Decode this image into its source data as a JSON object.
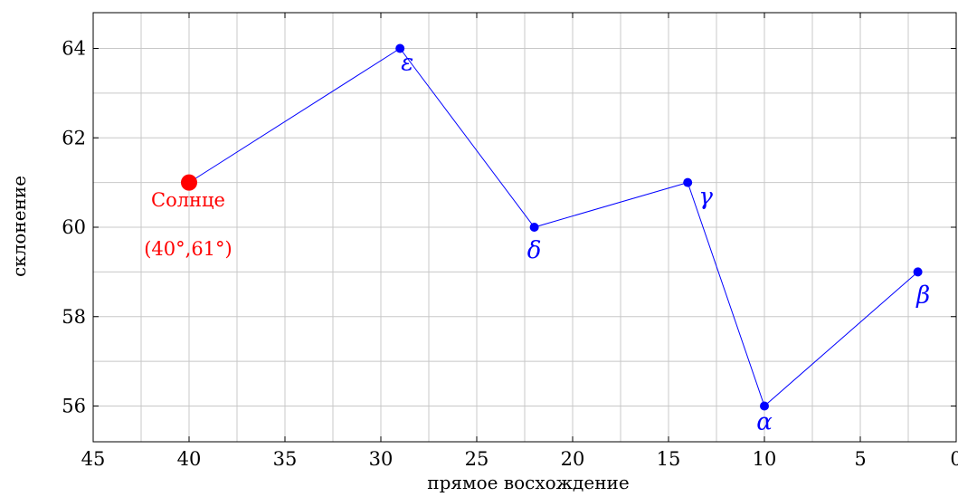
{
  "chart_data": {
    "type": "line",
    "xlabel": "прямое восхождение",
    "ylabel": "склонение",
    "xlim": [
      45,
      0
    ],
    "ylim": [
      55.2,
      64.8
    ],
    "x_reversed": true,
    "x_ticks": [
      45,
      40,
      35,
      30,
      25,
      20,
      15,
      10,
      5,
      0
    ],
    "y_ticks": [
      56,
      58,
      60,
      62,
      64
    ],
    "x_tick_labels": [
      "45",
      "40",
      "35",
      "30",
      "25",
      "20",
      "15",
      "10",
      "5",
      "0"
    ],
    "y_tick_labels": [
      "56",
      "58",
      "60",
      "62",
      "64"
    ],
    "grid": true,
    "series": [
      {
        "color": "#0000ff",
        "points": [
          {
            "x": 40,
            "y": 61,
            "label": "Солнце",
            "highlight": true
          },
          {
            "x": 29,
            "y": 64,
            "label": "ε"
          },
          {
            "x": 22,
            "y": 60,
            "label": "δ"
          },
          {
            "x": 14,
            "y": 61,
            "label": "γ"
          },
          {
            "x": 10,
            "y": 56,
            "label": "α"
          },
          {
            "x": 2,
            "y": 59,
            "label": "β"
          }
        ]
      }
    ],
    "annotations": {
      "sun_name": "Солнце",
      "sun_coords": "(40°,61°)",
      "sun_color": "#ff0000"
    }
  }
}
